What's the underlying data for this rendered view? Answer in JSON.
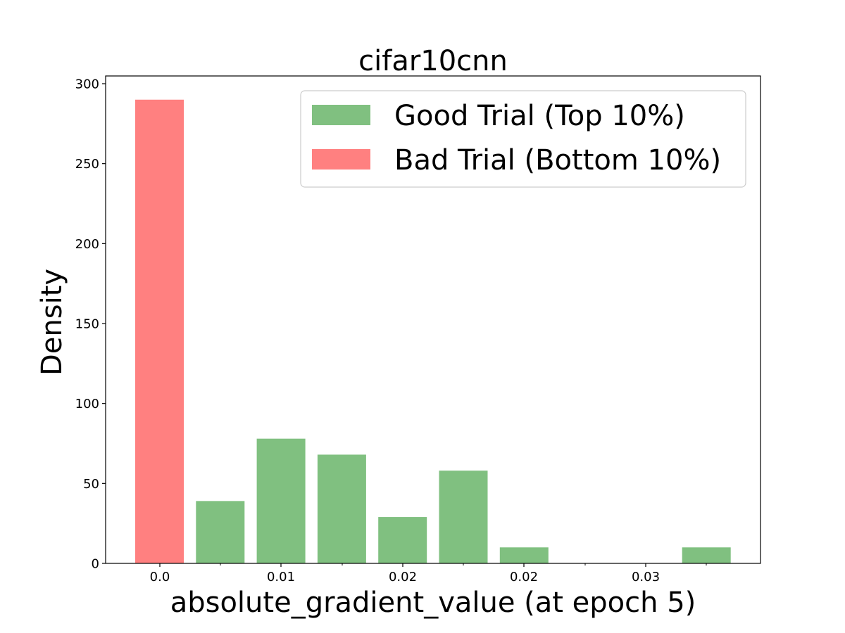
{
  "chart_data": {
    "type": "bar",
    "title": "cifar10cnn",
    "xlabel": "absolute_gradient_value (at epoch 5)",
    "ylabel": "Density",
    "ylim": [
      0,
      305
    ],
    "x_tick_labels": [
      "0.0",
      "0.01",
      "0.02",
      "0.02",
      "0.03"
    ],
    "y_ticks": [
      0,
      50,
      100,
      150,
      200,
      250,
      300
    ],
    "legend_placement": "upper-right",
    "series": [
      {
        "name": "Good Trial (Top 10%)",
        "color": "#80c080",
        "bars": [
          {
            "slot": 1,
            "value": 39
          },
          {
            "slot": 2,
            "value": 78
          },
          {
            "slot": 3,
            "value": 68
          },
          {
            "slot": 4,
            "value": 29
          },
          {
            "slot": 5,
            "value": 58
          },
          {
            "slot": 6,
            "value": 10
          },
          {
            "slot": 9,
            "value": 10
          }
        ]
      },
      {
        "name": "Bad Trial (Bottom 10%)",
        "color": "#ff8080",
        "bars": [
          {
            "slot": 0,
            "value": 290
          }
        ]
      }
    ]
  }
}
